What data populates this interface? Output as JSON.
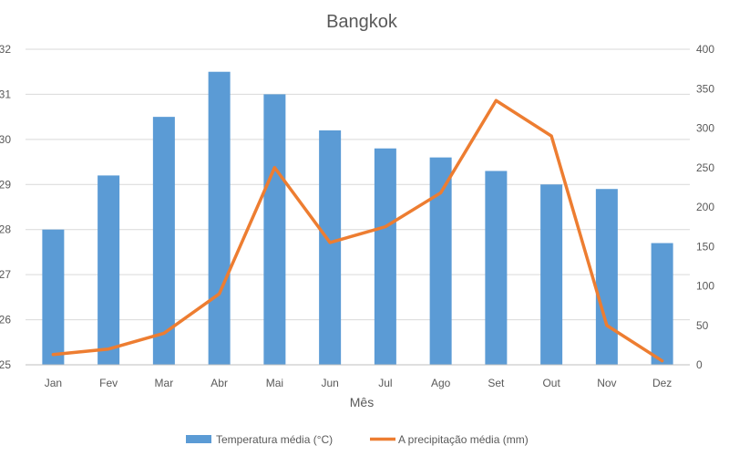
{
  "chart_data": {
    "type": "bar",
    "title": "Bangkok",
    "xlabel": "Mês",
    "categories": [
      "Jan",
      "Fev",
      "Mar",
      "Abr",
      "Mai",
      "Jun",
      "Jul",
      "Ago",
      "Set",
      "Out",
      "Nov",
      "Dez"
    ],
    "series": [
      {
        "name": "Temperatura média (°C)",
        "type": "bar",
        "axis": "left",
        "color": "#5b9bd5",
        "values": [
          28.0,
          29.2,
          30.5,
          31.5,
          31.0,
          30.2,
          29.8,
          29.6,
          29.3,
          29.0,
          28.9,
          27.7
        ]
      },
      {
        "name": "A precipitação média (mm)",
        "type": "line",
        "axis": "right",
        "color": "#ed7d31",
        "values": [
          13,
          20,
          40,
          90,
          250,
          155,
          175,
          218,
          335,
          290,
          50,
          5
        ]
      }
    ],
    "y_left": {
      "min": 25,
      "max": 32,
      "step": 1
    },
    "y_right": {
      "min": 0,
      "max": 400,
      "step": 50
    },
    "grid": true,
    "legend_position": "bottom"
  }
}
